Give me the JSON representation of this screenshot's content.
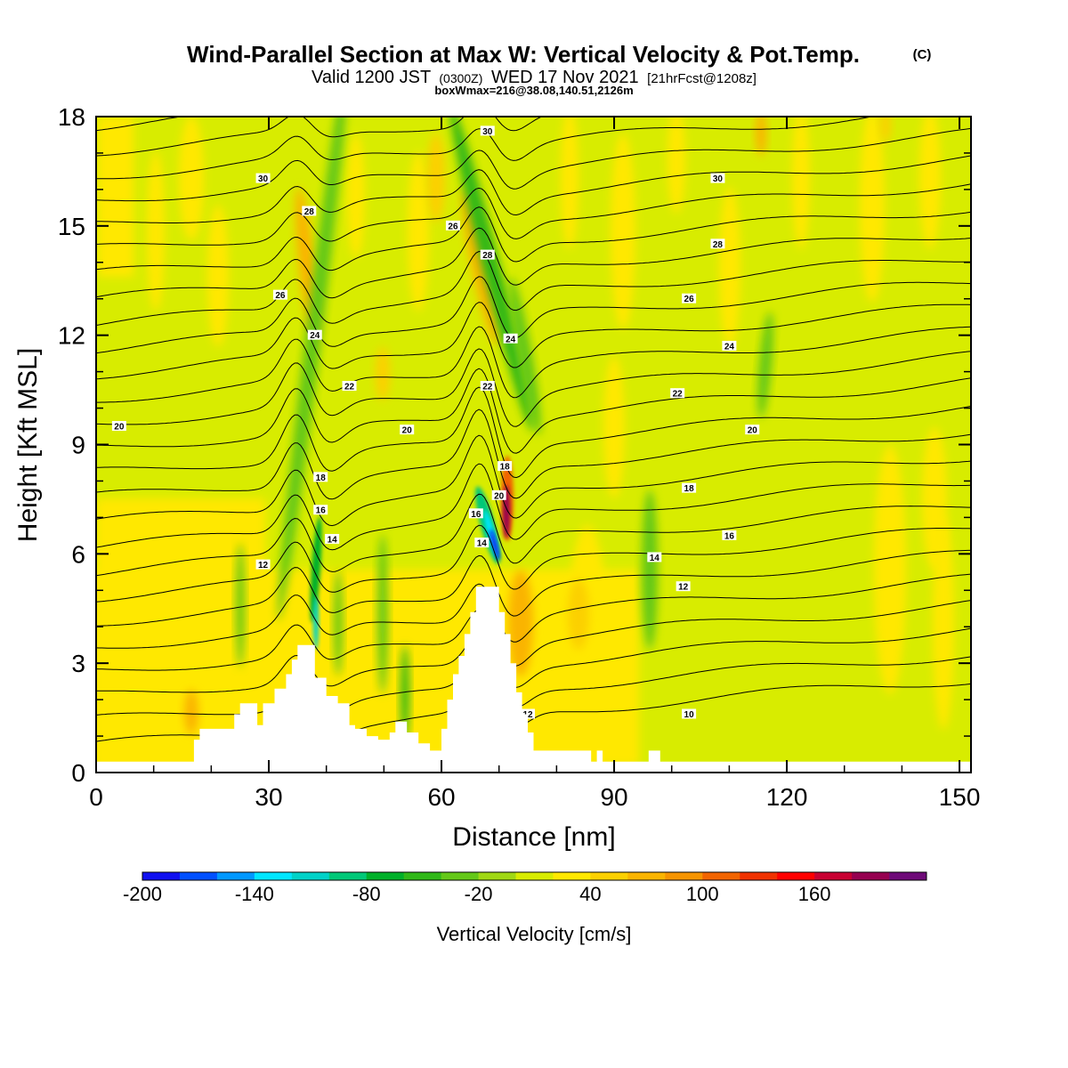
{
  "header": {
    "title": "Wind-Parallel Section at Max W: Vertical Velocity & Pot.Temp.",
    "copyright": "(C)",
    "valid_prefix": "Valid 1200 JST",
    "valid_utc": "(0300Z)",
    "valid_date": "WED 17 Nov 2021",
    "forecast": "[21hrFcst@1208z]",
    "box_info": "boxWmax=216@38.08,140.51,2126m"
  },
  "chart_data": {
    "type": "heatmap",
    "xlabel": "Distance [nm]",
    "ylabel": "Height [Kft MSL]",
    "xlim": [
      0,
      152
    ],
    "ylim": [
      0,
      18
    ],
    "x_ticks": [
      0,
      30,
      60,
      90,
      120,
      150
    ],
    "y_ticks": [
      0,
      3,
      6,
      9,
      12,
      15,
      18
    ],
    "grid": false,
    "colorbar": {
      "label": "Vertical Velocity [cm/s]",
      "tick_labels": [
        "-200",
        "-140",
        "-80",
        "-20",
        "40",
        "100",
        "160"
      ],
      "colors": [
        "#1010f0",
        "#0050ff",
        "#0098ff",
        "#00e6ff",
        "#00d2c8",
        "#00c878",
        "#00b02a",
        "#30b818",
        "#64c818",
        "#a0d814",
        "#d8ec00",
        "#ffe800",
        "#fcd000",
        "#fab400",
        "#f69400",
        "#f26400",
        "#f03200",
        "#ff0000",
        "#c80032",
        "#960050",
        "#6e0a78"
      ]
    },
    "theta_contour_labels": [
      "10",
      "12",
      "14",
      "16",
      "18",
      "20",
      "22",
      "24",
      "26",
      "28",
      "30"
    ],
    "terrain_height_kft": [
      [
        0,
        0.3
      ],
      [
        16,
        0.3
      ],
      [
        17,
        0.9
      ],
      [
        18,
        1.2
      ],
      [
        23,
        1.2
      ],
      [
        24,
        1.6
      ],
      [
        25,
        1.9
      ],
      [
        27,
        1.9
      ],
      [
        28,
        1.3
      ],
      [
        29,
        1.9
      ],
      [
        31,
        2.3
      ],
      [
        33,
        2.7
      ],
      [
        34,
        3.1
      ],
      [
        35,
        3.5
      ],
      [
        37,
        3.5
      ],
      [
        38,
        2.6
      ],
      [
        40,
        2.1
      ],
      [
        42,
        1.9
      ],
      [
        44,
        1.3
      ],
      [
        45,
        1.2
      ],
      [
        47,
        1.0
      ],
      [
        49,
        0.9
      ],
      [
        51,
        1.1
      ],
      [
        52,
        1.4
      ],
      [
        54,
        1.1
      ],
      [
        56,
        0.8
      ],
      [
        58,
        0.6
      ],
      [
        60,
        1.2
      ],
      [
        61,
        2.0
      ],
      [
        62,
        2.7
      ],
      [
        63,
        3.2
      ],
      [
        64,
        3.8
      ],
      [
        65,
        4.4
      ],
      [
        66,
        5.1
      ],
      [
        69,
        5.1
      ],
      [
        70,
        4.4
      ],
      [
        71,
        3.8
      ],
      [
        72,
        3.0
      ],
      [
        73,
        2.2
      ],
      [
        74,
        1.6
      ],
      [
        75,
        1.1
      ],
      [
        76,
        0.6
      ],
      [
        80,
        0.6
      ],
      [
        84,
        0.6
      ],
      [
        86,
        0.3
      ],
      [
        87,
        0.6
      ],
      [
        88,
        0.3
      ],
      [
        95,
        0.3
      ],
      [
        96,
        0.6
      ],
      [
        98,
        0.3
      ],
      [
        152,
        0.3
      ]
    ]
  }
}
